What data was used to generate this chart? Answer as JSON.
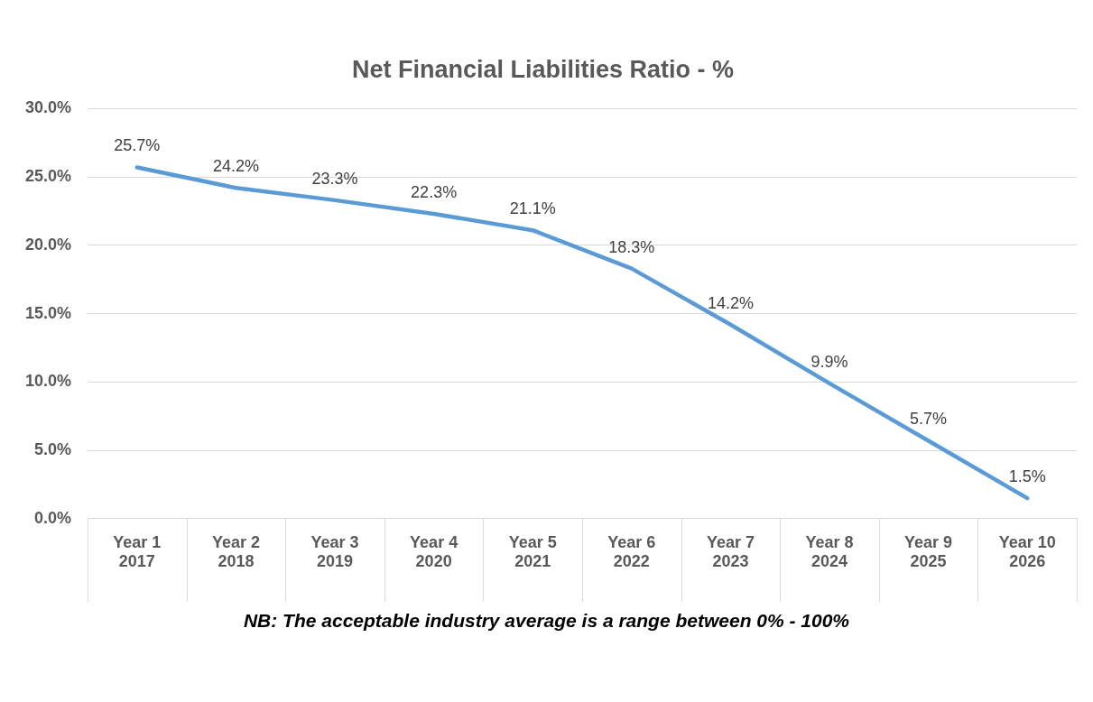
{
  "chart_data": {
    "type": "line",
    "title": "Net Financial Liabilities Ratio - %",
    "categories": [
      "Year 1\n2017",
      "Year 2\n2018",
      "Year 3\n2019",
      "Year 4\n2020",
      "Year 5\n2021",
      "Year 6\n2022",
      "Year 7\n2023",
      "Year 8\n2024",
      "Year 9\n2025",
      "Year 10\n2026"
    ],
    "series": [
      {
        "color": "#5b9bd5",
        "values": [
          25.7,
          24.2,
          23.3,
          22.3,
          21.1,
          18.3,
          14.2,
          9.9,
          5.7,
          1.5
        ],
        "value_labels": [
          "25.7%",
          "24.2%",
          "23.3%",
          "22.3%",
          "21.1%",
          "18.3%",
          "14.2%",
          "9.9%",
          "5.7%",
          "1.5%"
        ]
      }
    ],
    "ylim": [
      0,
      30
    ],
    "yticks": [
      {
        "value": 0,
        "label": "0.0%"
      },
      {
        "value": 5,
        "label": "5.0%"
      },
      {
        "value": 10,
        "label": "10.0%"
      },
      {
        "value": 15,
        "label": "15.0%"
      },
      {
        "value": 20,
        "label": "20.0%"
      },
      {
        "value": 25,
        "label": "25.0%"
      },
      {
        "value": 30,
        "label": "30.0%"
      }
    ],
    "grid": "y",
    "legend": false,
    "marker": "none",
    "line_style": "solid",
    "annotations": [
      "NB: The acceptable industry average is a range between 0% - 100%"
    ]
  }
}
